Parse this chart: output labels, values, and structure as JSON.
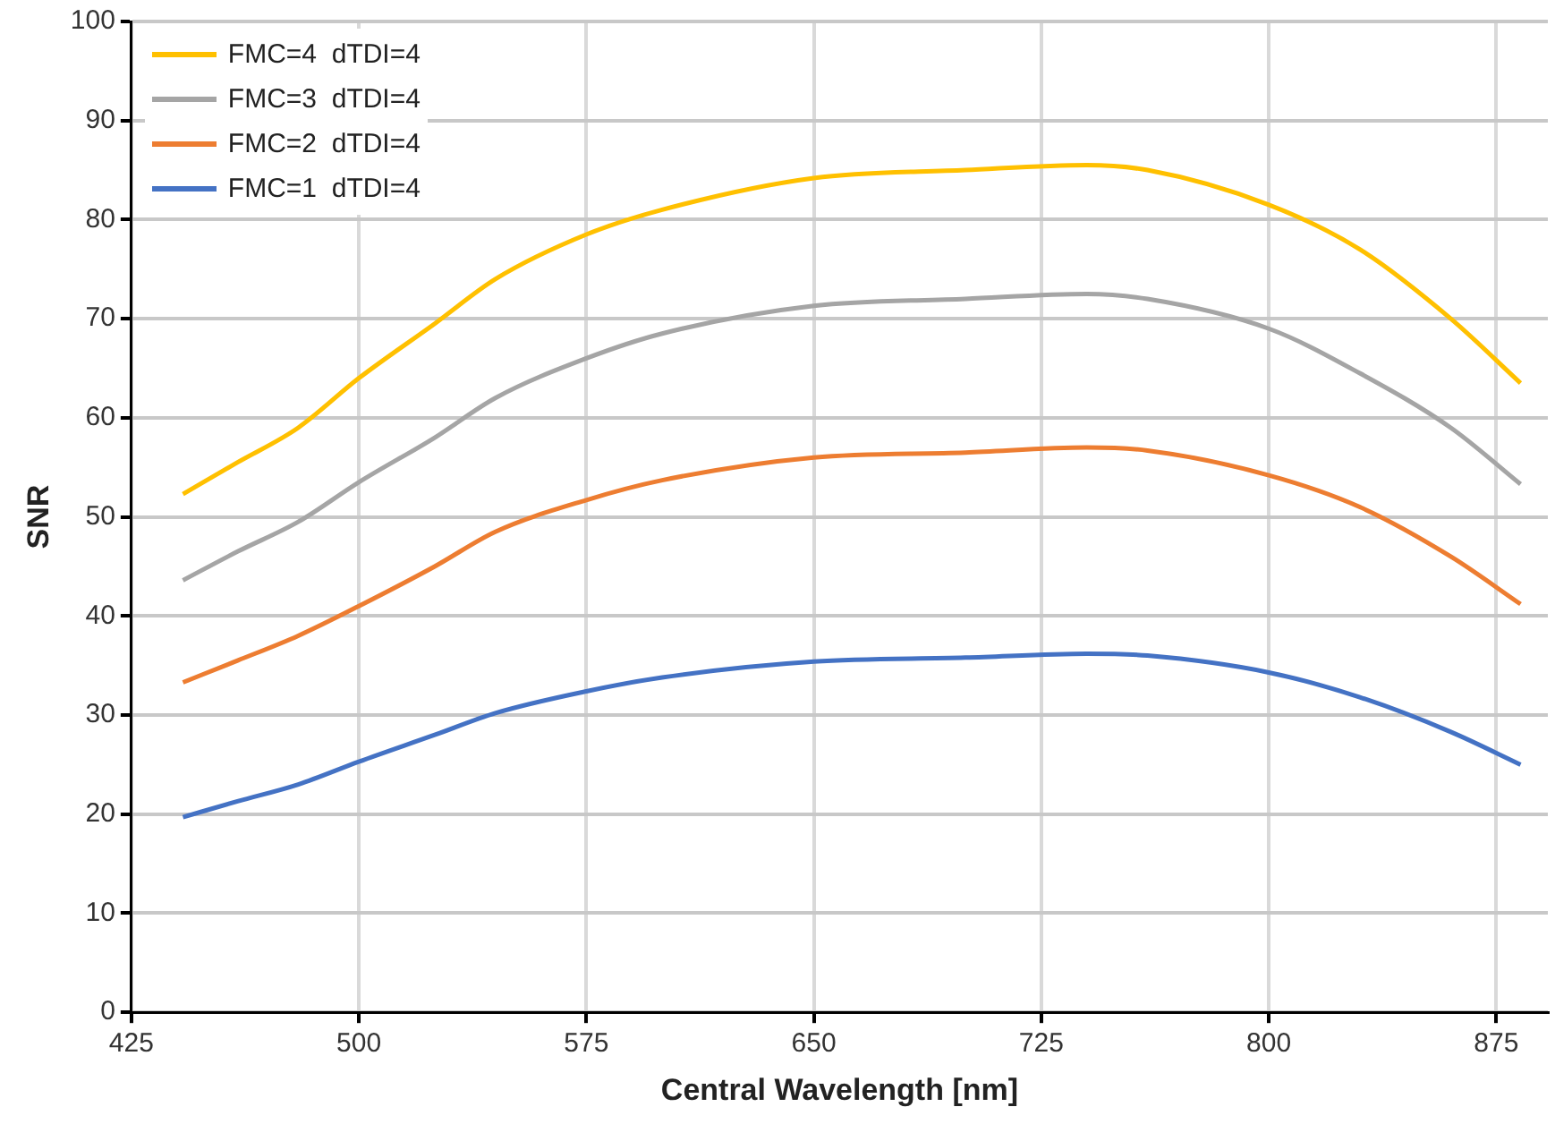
{
  "chart_data": {
    "type": "line",
    "xlabel": "Central Wavelength [nm]",
    "ylabel": "SNR",
    "x": [
      442,
      460,
      480,
      500,
      525,
      545,
      575,
      600,
      650,
      700,
      740,
      760,
      800,
      830,
      860,
      883
    ],
    "series": [
      {
        "name": "FMC=4  dTDI=4",
        "color": "#ffc000",
        "values": [
          52.3,
          55.5,
          59,
          64,
          69.5,
          74,
          78.5,
          81,
          84.2,
          85,
          85.5,
          85,
          81.5,
          77,
          70,
          63.5
        ]
      },
      {
        "name": "FMC=3  dTDI=4",
        "color": "#a5a5a5",
        "values": [
          43.6,
          46.5,
          49.5,
          53.5,
          58,
          62,
          66,
          68.5,
          71.3,
          72,
          72.5,
          72,
          69,
          64.5,
          59,
          53.3
        ]
      },
      {
        "name": "FMC=2  dTDI=4",
        "color": "#ed7d31",
        "values": [
          33.3,
          35.5,
          38,
          41,
          45,
          48.5,
          51.7,
          53.7,
          56,
          56.5,
          57,
          56.7,
          54.2,
          51,
          46,
          41.2
        ]
      },
      {
        "name": "FMC=1  dTDI=4",
        "color": "#4472c4",
        "values": [
          19.7,
          21.3,
          23,
          25.3,
          28,
          30.2,
          32.4,
          33.8,
          35.4,
          35.8,
          36.2,
          36,
          34.3,
          31.8,
          28.3,
          25
        ]
      }
    ],
    "xlim": [
      425,
      892
    ],
    "xticks": [
      425,
      500,
      575,
      650,
      725,
      800,
      875
    ],
    "ylim": [
      0,
      100
    ],
    "yticks": [
      0,
      10,
      20,
      30,
      40,
      50,
      60,
      70,
      80,
      90,
      100
    ],
    "grid": true,
    "legend": "top left",
    "marker": "none",
    "line_style": "solid"
  }
}
